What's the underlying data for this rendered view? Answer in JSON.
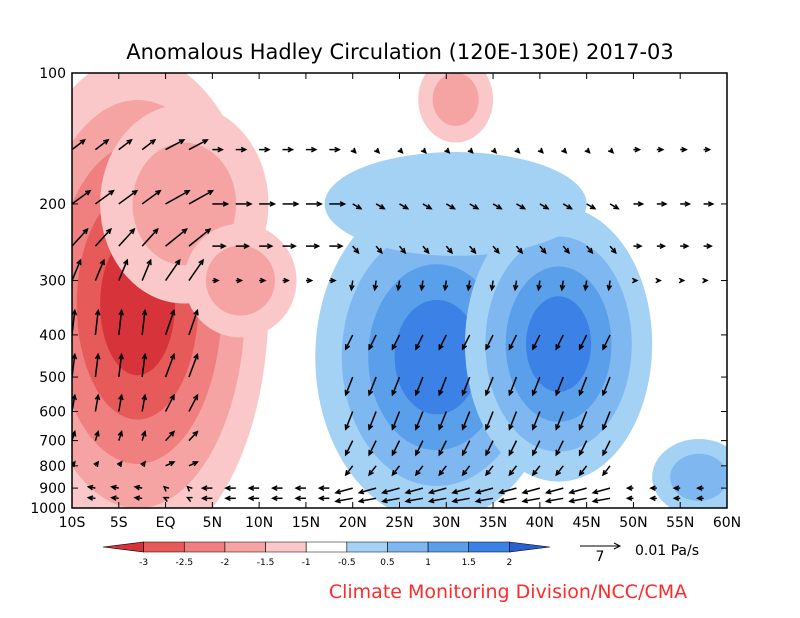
{
  "chart_data": {
    "type": "heatmap",
    "title": "Anomalous Hadley Circulation (120E-130E)",
    "date": "2017-03",
    "x_ticks": [
      "10S",
      "5S",
      "EQ",
      "5N",
      "10N",
      "15N",
      "20N",
      "25N",
      "30N",
      "35N",
      "40N",
      "45N",
      "50N",
      "55N",
      "60N"
    ],
    "x_range": [
      -10,
      60
    ],
    "y_ticks": [
      "100",
      "200",
      "300",
      "400",
      "500",
      "600",
      "700",
      "800",
      "900",
      "1000"
    ],
    "y_range_hpa": [
      100,
      1000
    ],
    "y_scale": "log",
    "colorbar": {
      "ticks": [
        "-3",
        "-2.5",
        "-2",
        "-1.5",
        "-1",
        "-0.5",
        "0.5",
        "1",
        "1.5",
        "2"
      ],
      "colors": [
        "#d7333b",
        "#e65a5a",
        "#f08080",
        "#f5a3a3",
        "#fac8c8",
        "#ffffff",
        "#a3d2f5",
        "#7fb8f0",
        "#5a9fea",
        "#3c82e6",
        "#2860d2"
      ]
    },
    "vector_levels_hpa": [
      150,
      200,
      250,
      300,
      400,
      500,
      600,
      700,
      800,
      900,
      950
    ],
    "reference_vector": {
      "number": "7",
      "label": "0.01 Pa/s"
    },
    "credit": "Climate Monitoring Division/NCC/CMA",
    "credit_color": "#ff2b2b"
  }
}
